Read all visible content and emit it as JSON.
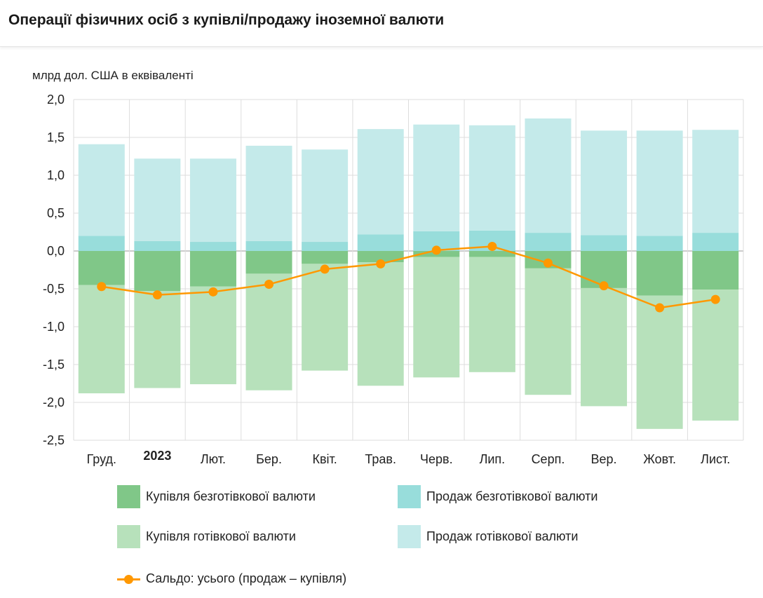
{
  "header": {
    "title": "Операції фізичних осіб з купівлі/продажу іноземної валюти"
  },
  "colors": {
    "buy_noncash": "#80c788",
    "buy_cash": "#b7e1bb",
    "sell_noncash": "#98dddb",
    "sell_cash": "#c4eaea",
    "balance": "#ff9800",
    "grid": "#dddddd",
    "axis_text": "#222222"
  },
  "legend": [
    {
      "key": "buy_noncash",
      "label": "Купівля безготівкової валюти"
    },
    {
      "key": "sell_noncash",
      "label": "Продаж безготівкової валюти"
    },
    {
      "key": "buy_cash",
      "label": "Купівля готівкової валюти"
    },
    {
      "key": "sell_cash",
      "label": "Продаж готівкової валюти"
    },
    {
      "key": "balance",
      "label": "Сальдо: усього (продаж – купівля)"
    }
  ],
  "chart_data": {
    "type": "bar",
    "stacked": true,
    "title": "Операції фізичних осіб з купівлі/продажу іноземної валюти",
    "ylabel": "млрд дол. США в еквіваленті",
    "xlabel": "",
    "ylim": [
      -2.5,
      2.0
    ],
    "yticks": [
      2.0,
      1.5,
      1.0,
      0.5,
      0.0,
      -0.5,
      -1.0,
      -1.5,
      -2.0,
      -2.5
    ],
    "ytick_labels": [
      "2,0",
      "1,5",
      "1,0",
      "0,5",
      "0,0",
      "-0,5",
      "-1,0",
      "-1,5",
      "-2,0",
      "-2,5"
    ],
    "grid": true,
    "categories": [
      "Груд.",
      "2023",
      "Лют.",
      "Бер.",
      "Квіт.",
      "Трав.",
      "Черв.",
      "Лип.",
      "Серп.",
      "Вер.",
      "Жовт.",
      "Лист."
    ],
    "bold_categories": [
      "2023"
    ],
    "series": [
      {
        "key": "buy_noncash",
        "name": "Купівля безготівкової валюти",
        "type": "bar",
        "values": [
          -0.45,
          -0.53,
          -0.47,
          -0.3,
          -0.17,
          -0.15,
          -0.08,
          -0.08,
          -0.23,
          -0.49,
          -0.59,
          -0.51
        ]
      },
      {
        "key": "buy_cash",
        "name": "Купівля готівкової валюти",
        "type": "bar",
        "values": [
          -1.43,
          -1.28,
          -1.29,
          -1.54,
          -1.41,
          -1.63,
          -1.59,
          -1.52,
          -1.67,
          -1.56,
          -1.76,
          -1.73
        ]
      },
      {
        "key": "sell_noncash",
        "name": "Продаж безготівкової валюти",
        "type": "bar",
        "values": [
          0.2,
          0.13,
          0.12,
          0.13,
          0.12,
          0.22,
          0.26,
          0.27,
          0.24,
          0.21,
          0.2,
          0.24
        ]
      },
      {
        "key": "sell_cash",
        "name": "Продаж готівкової валюти",
        "type": "bar",
        "values": [
          1.21,
          1.09,
          1.1,
          1.26,
          1.22,
          1.39,
          1.41,
          1.39,
          1.51,
          1.38,
          1.39,
          1.36
        ]
      },
      {
        "key": "balance",
        "name": "Сальдо: усього (продаж – купівля)",
        "type": "line",
        "values": [
          -0.47,
          -0.58,
          -0.54,
          -0.44,
          -0.24,
          -0.17,
          0.01,
          0.06,
          -0.16,
          -0.46,
          -0.75,
          -0.64
        ]
      }
    ],
    "legend_position": "bottom"
  }
}
